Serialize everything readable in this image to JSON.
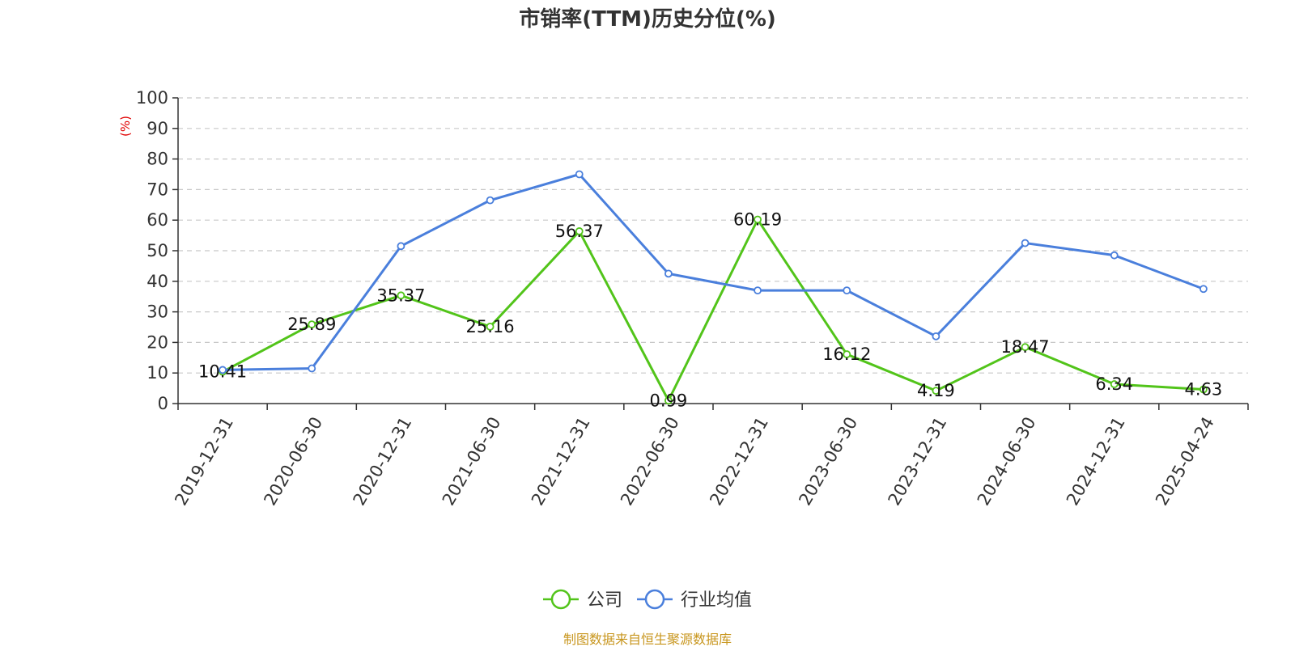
{
  "chart_data": {
    "type": "line",
    "title": "市销率(TTM)历史分位(%)",
    "ylabel": "(%)",
    "ylim": [
      0,
      100
    ],
    "yticks": [
      0,
      10,
      20,
      30,
      40,
      50,
      60,
      70,
      80,
      90,
      100
    ],
    "grid": true,
    "legend_position": "bottom",
    "x": [
      "2019-12-31",
      "2020-06-30",
      "2020-12-31",
      "2021-06-30",
      "2021-12-31",
      "2022-06-30",
      "2022-12-31",
      "2023-06-30",
      "2023-12-31",
      "2024-06-30",
      "2024-12-31",
      "2025-04-24"
    ],
    "series": [
      {
        "name": "公司",
        "color": "#52c41a",
        "show_labels": true,
        "values": [
          10.41,
          25.89,
          35.37,
          25.16,
          56.37,
          0.99,
          60.19,
          16.12,
          4.19,
          18.47,
          6.34,
          4.63
        ]
      },
      {
        "name": "行业均值",
        "color": "#4a7fdc",
        "show_labels": false,
        "values": [
          11.0,
          11.5,
          51.5,
          66.5,
          75.0,
          42.5,
          37.0,
          37.0,
          22.0,
          52.5,
          48.5,
          37.5
        ]
      }
    ],
    "source": "制图数据来自恒生聚源数据库"
  }
}
